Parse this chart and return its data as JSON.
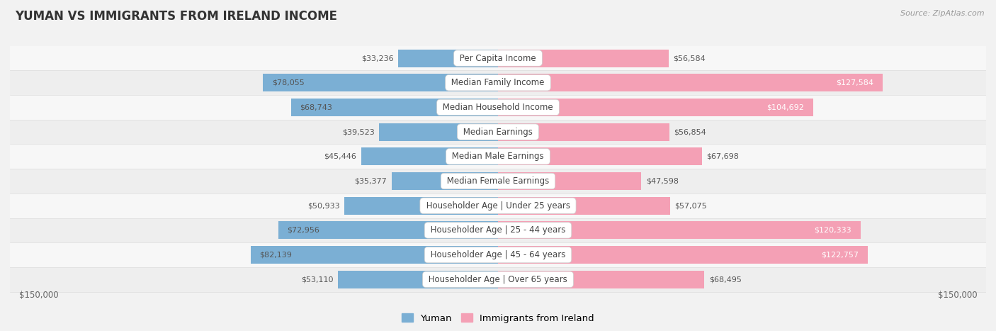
{
  "title": "YUMAN VS IMMIGRANTS FROM IRELAND INCOME",
  "source": "Source: ZipAtlas.com",
  "categories": [
    "Per Capita Income",
    "Median Family Income",
    "Median Household Income",
    "Median Earnings",
    "Median Male Earnings",
    "Median Female Earnings",
    "Householder Age | Under 25 years",
    "Householder Age | 25 - 44 years",
    "Householder Age | 45 - 64 years",
    "Householder Age | Over 65 years"
  ],
  "yuman_values": [
    33236,
    78055,
    68743,
    39523,
    45446,
    35377,
    50933,
    72956,
    82139,
    53110
  ],
  "ireland_values": [
    56584,
    127584,
    104692,
    56854,
    67698,
    47598,
    57075,
    120333,
    122757,
    68495
  ],
  "yuman_color": "#7bafd4",
  "ireland_color": "#f4a0b5",
  "ireland_color_dark": "#e8688a",
  "max_value": 150000,
  "row_bg_even": "#f0f0f0",
  "row_bg_odd": "#e8e8e8",
  "xlabel_left": "$150,000",
  "xlabel_right": "$150,000",
  "legend_yuman": "Yuman",
  "legend_ireland": "Immigrants from Ireland"
}
